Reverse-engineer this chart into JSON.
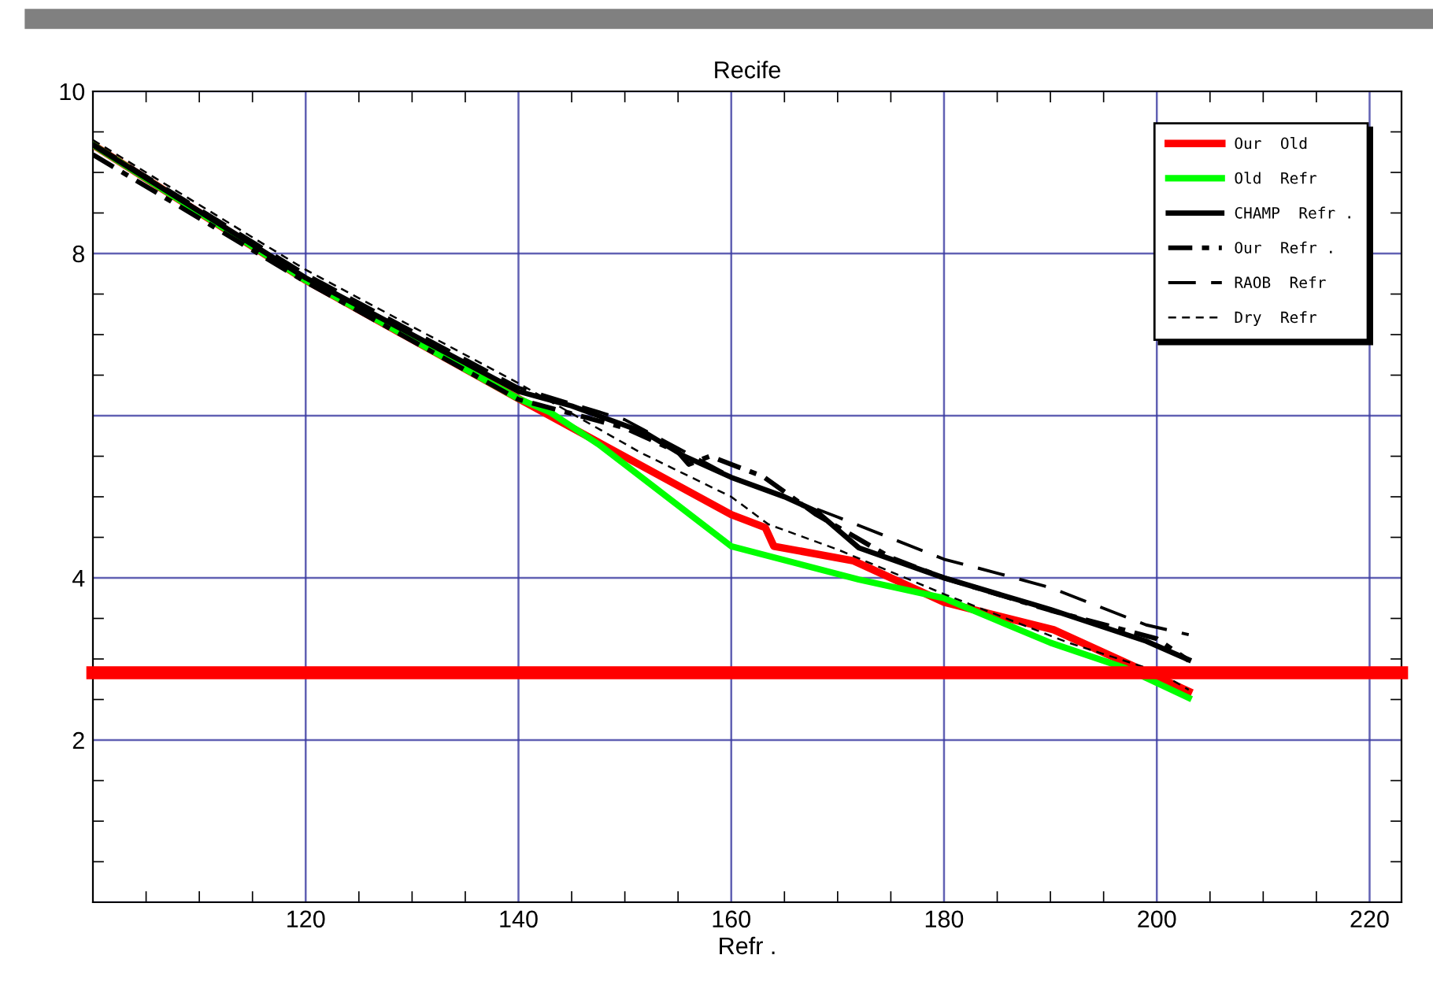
{
  "chart_data": {
    "type": "line",
    "title": "Recife",
    "xlabel": "Refr .",
    "xlim": [
      100,
      223
    ],
    "xticks": [
      120,
      140,
      160,
      180,
      200,
      220
    ],
    "ylim": [
      0,
      10
    ],
    "yticks": [
      {
        "value": 0,
        "label": null
      },
      2,
      4,
      {
        "value": 6,
        "label": null
      },
      8,
      10
    ],
    "grid": true,
    "legend": "top right",
    "series": [
      {
        "name": "Our  Old",
        "color": "#ff0000",
        "line_style": "solid",
        "x": [
          100,
          120,
          140,
          160,
          163.2,
          164,
          171.5,
          180,
          190.3,
          200,
          203
        ],
        "values": [
          9.34,
          7.67,
          6.21,
          4.78,
          4.62,
          4.39,
          4.21,
          3.7,
          3.36,
          2.78,
          2.6
        ]
      },
      {
        "name": "Old  Refr",
        "color": "#00ff00",
        "line_style": "solid",
        "x": [
          100,
          120,
          140,
          143,
          147.5,
          160,
          172,
          180,
          190,
          197,
          203
        ],
        "values": [
          9.34,
          7.67,
          6.21,
          6.04,
          5.65,
          4.39,
          3.98,
          3.75,
          3.2,
          2.89,
          2.52
        ]
      },
      {
        "name": "CHAMP  Refr .",
        "color": "#000000",
        "line_style": "solid",
        "x": [
          100,
          120,
          140,
          145,
          151.9,
          155.6,
          160,
          165,
          168,
          172,
          180,
          190,
          199,
          203
        ],
        "values": [
          9.34,
          7.7,
          6.3,
          6.12,
          5.79,
          5.5,
          5.24,
          5.0,
          4.82,
          4.37,
          4.0,
          3.61,
          3.22,
          2.99
        ]
      },
      {
        "name": "Our  Refr .",
        "color": "#000000",
        "line_style": "dashdot",
        "x": [
          100,
          120,
          140,
          150,
          155,
          156,
          158,
          163,
          168,
          175,
          180,
          190,
          200,
          203
        ],
        "values": [
          9.22,
          7.65,
          6.2,
          5.85,
          5.55,
          5.4,
          5.5,
          5.25,
          4.78,
          4.25,
          4.0,
          3.6,
          3.25,
          2.98
        ]
      },
      {
        "name": "RAOB  Refr",
        "color": "#000000",
        "line_style": "longdash",
        "x": [
          100,
          120,
          140,
          150,
          160,
          170,
          180,
          184.4,
          190,
          199,
          203
        ],
        "values": [
          9.36,
          7.75,
          6.35,
          5.95,
          5.25,
          4.75,
          4.23,
          4.08,
          3.88,
          3.42,
          3.3
        ]
      },
      {
        "name": "Dry  Refr",
        "color": "#000000",
        "line_style": "dashed",
        "x": [
          100,
          120,
          130,
          140,
          151.4,
          160,
          163.5,
          170,
          180,
          191.7,
          200,
          203
        ],
        "values": [
          9.4,
          7.8,
          7.1,
          6.4,
          5.55,
          5.0,
          4.66,
          4.35,
          3.8,
          3.2,
          2.85,
          2.62
        ]
      }
    ],
    "ref_lines": [
      {
        "axis": "y",
        "value": 2.83,
        "color": "#ff0000"
      }
    ]
  }
}
